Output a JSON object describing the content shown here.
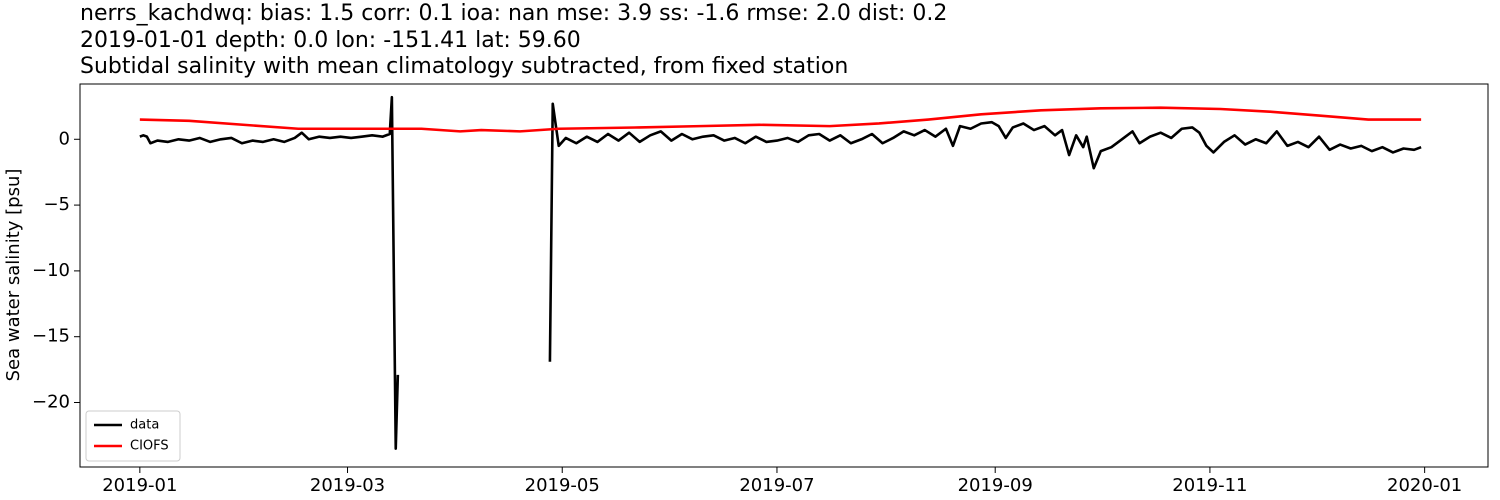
{
  "chart_data": {
    "type": "line",
    "title": [
      "nerrs_kachdwq: bias: 1.5  corr: 0.1  ioa: nan  mse: 3.9  ss: -1.6  rmse: 2.0  dist: 0.2",
      "2019-01-01 depth: 0.0 lon: -151.41 lat: 59.60",
      "Subtidal salinity with mean climatology subtracted, from fixed station"
    ],
    "ylabel": "Sea water salinity [psu]",
    "xlim": [
      -17,
      383
    ],
    "xticks": [
      {
        "value": 0,
        "label": "2019-01"
      },
      {
        "value": 59,
        "label": "2019-03"
      },
      {
        "value": 120,
        "label": "2019-05"
      },
      {
        "value": 181,
        "label": "2019-07"
      },
      {
        "value": 243,
        "label": "2019-09"
      },
      {
        "value": 304,
        "label": "2019-11"
      },
      {
        "value": 365,
        "label": "2020-01"
      }
    ],
    "ylim": [
      -24.9,
      4.2
    ],
    "yticks": [
      {
        "value": -20,
        "label": "−20"
      },
      {
        "value": -15,
        "label": "−15"
      },
      {
        "value": -10,
        "label": "−10"
      },
      {
        "value": -5,
        "label": "−5"
      },
      0
    ],
    "legend": "lower left",
    "series": [
      {
        "name": "data",
        "color": "#000000",
        "x": [
          0,
          1,
          2,
          3,
          5,
          8,
          11,
          14,
          17,
          20,
          23,
          26,
          29,
          32,
          35,
          38,
          41,
          44,
          46,
          48,
          51,
          54,
          57,
          60,
          63,
          66,
          69,
          71,
          71.6,
          72.7,
          73.3,
          95,
          116.5,
          117.3,
          119,
          121,
          124,
          127,
          130,
          133,
          136,
          139,
          142,
          145,
          148,
          151,
          154,
          157,
          160,
          163,
          166,
          169,
          172,
          175,
          178,
          181,
          184,
          187,
          190,
          193,
          196,
          199,
          202,
          205,
          208,
          211,
          214,
          217,
          220,
          223,
          226,
          229,
          231,
          233,
          236,
          239,
          242,
          244,
          246,
          248,
          251,
          254,
          257,
          260,
          262,
          264,
          266,
          268,
          269,
          271,
          273,
          276,
          279,
          282,
          284,
          287,
          290,
          293,
          296,
          299,
          301,
          303,
          305,
          308,
          311,
          314,
          317,
          320,
          323,
          326,
          329,
          332,
          335,
          338,
          341,
          344,
          347,
          350,
          353,
          356,
          359,
          362,
          364
        ],
        "values": [
          0.2,
          0.3,
          0.2,
          -0.3,
          -0.1,
          -0.2,
          0.0,
          -0.1,
          0.1,
          -0.2,
          0.0,
          0.1,
          -0.3,
          -0.1,
          -0.2,
          0.0,
          -0.2,
          0.1,
          0.5,
          0.0,
          0.2,
          0.1,
          0.2,
          0.1,
          0.2,
          0.3,
          0.2,
          0.4,
          3.2,
          -23.5,
          -17.9,
          null,
          -16.9,
          2.7,
          -0.5,
          0.1,
          -0.3,
          0.2,
          -0.2,
          0.4,
          -0.1,
          0.5,
          -0.2,
          0.3,
          0.6,
          -0.1,
          0.4,
          0.0,
          0.2,
          0.3,
          -0.1,
          0.1,
          -0.3,
          0.2,
          -0.2,
          -0.1,
          0.1,
          -0.2,
          0.3,
          0.4,
          -0.1,
          0.3,
          -0.3,
          0.0,
          0.4,
          -0.3,
          0.1,
          0.6,
          0.3,
          0.7,
          0.2,
          0.8,
          -0.5,
          1.0,
          0.8,
          1.2,
          1.3,
          1.0,
          0.1,
          0.9,
          1.2,
          0.7,
          1.0,
          0.3,
          0.7,
          -1.2,
          0.3,
          -0.6,
          0.2,
          -2.2,
          -0.9,
          -0.6,
          0.0,
          0.6,
          -0.3,
          0.2,
          0.5,
          0.1,
          0.8,
          0.9,
          0.5,
          -0.5,
          -1.0,
          -0.2,
          0.3,
          -0.4,
          0.0,
          -0.3,
          0.6,
          -0.5,
          -0.2,
          -0.6,
          0.2,
          -0.8,
          -0.4,
          -0.7,
          -0.5,
          -0.9,
          -0.6,
          -1.0,
          -0.7,
          -0.8,
          -0.6
        ]
      },
      {
        "name": "CIOFS",
        "color": "#ff0000",
        "x": [
          0,
          14,
          45,
          80,
          91,
          97,
          108,
          119,
          142,
          159,
          176,
          196,
          210,
          224,
          239,
          256,
          273,
          290,
          307,
          321,
          335,
          349,
          364
        ],
        "values": [
          1.5,
          1.4,
          0.8,
          0.8,
          0.6,
          0.7,
          0.6,
          0.8,
          0.9,
          1.0,
          1.1,
          1.0,
          1.2,
          1.5,
          1.9,
          2.2,
          2.35,
          2.4,
          2.3,
          2.1,
          1.8,
          1.5,
          1.5
        ]
      }
    ]
  }
}
